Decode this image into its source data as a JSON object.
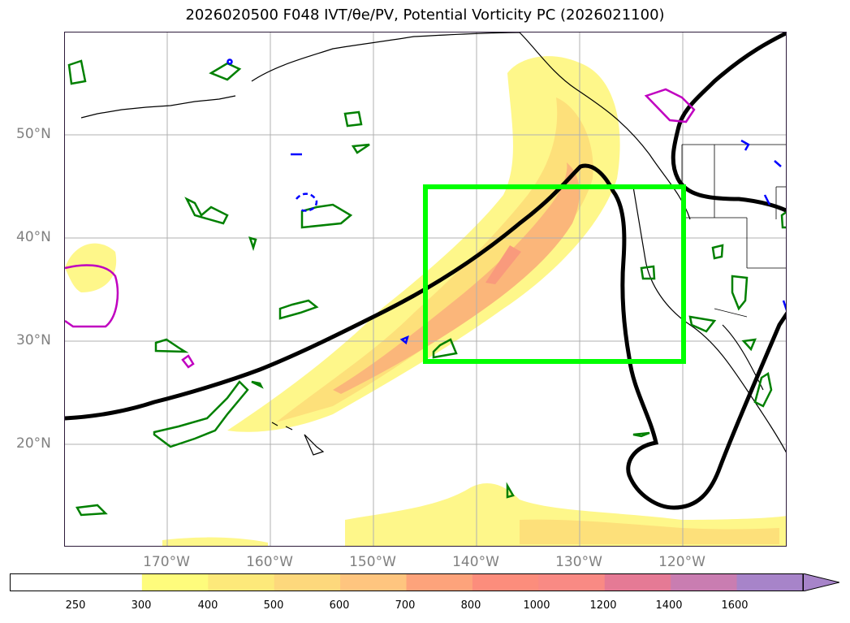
{
  "title": "2026020500 F048 IVT/θe/PV, Potential Vorticity PC (2026021100)",
  "lat_labels": [
    "50°N",
    "40°N",
    "30°N",
    "20°N"
  ],
  "lon_labels": [
    "170°W",
    "160°W",
    "150°W",
    "140°W",
    "130°W",
    "120°W"
  ],
  "colorbar": {
    "ticks": [
      "250",
      "300",
      "400",
      "500",
      "600",
      "700",
      "800",
      "1000",
      "1200",
      "1400",
      "1600"
    ],
    "colors": [
      "#ffffff",
      "#fefc7c",
      "#fde97a",
      "#fdd87c",
      "#fec57f",
      "#fda37b",
      "#fc8d7c",
      "#f98a84",
      "#e57a95",
      "#c97db1",
      "#a784c9"
    ]
  },
  "colors": {
    "ivt_light": "#fef78a",
    "ivt_mid": "#fde07a",
    "ivt_orange": "#fbb67a",
    "ivt_core": "#f99a7c",
    "contour_green": "#008000",
    "box_green": "#00ff00",
    "pv_magenta": "#c000c0",
    "pv_blue": "#0000ff",
    "theta_black": "#000000"
  }
}
